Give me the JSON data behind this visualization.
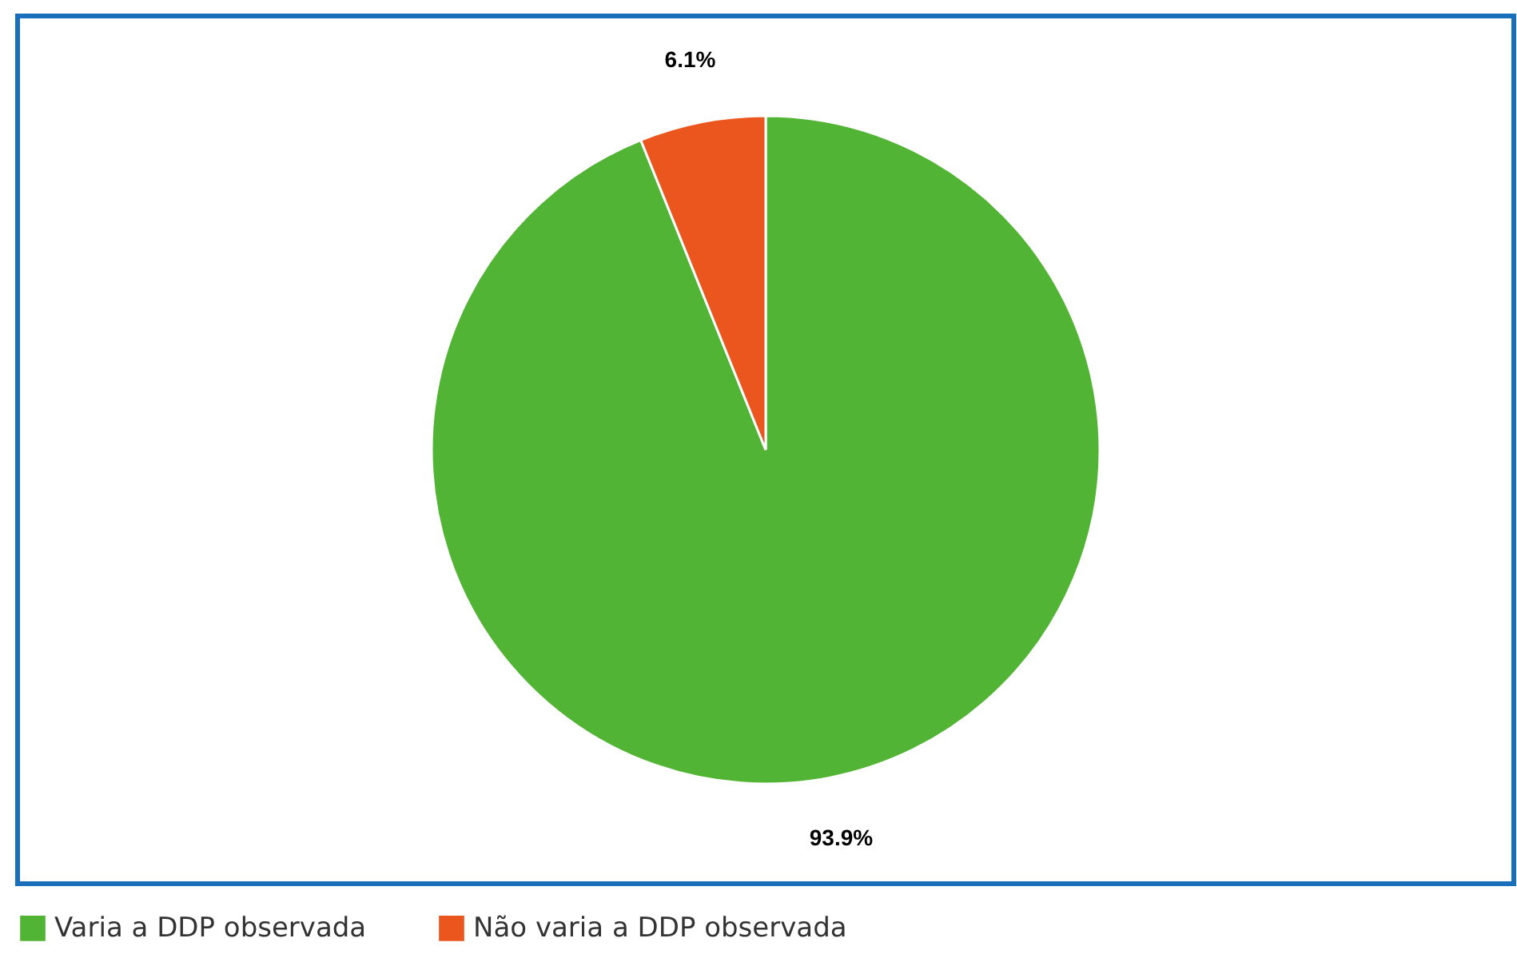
{
  "chart_data": {
    "type": "pie",
    "categories": [
      "Varia a DDP observada",
      "Não varia a DDP observada"
    ],
    "values": [
      93.9,
      6.1
    ],
    "colors": [
      "#52b434",
      "#ea561d"
    ],
    "value_labels": [
      "93.9%",
      "6.1%"
    ],
    "legend": "bottom"
  }
}
